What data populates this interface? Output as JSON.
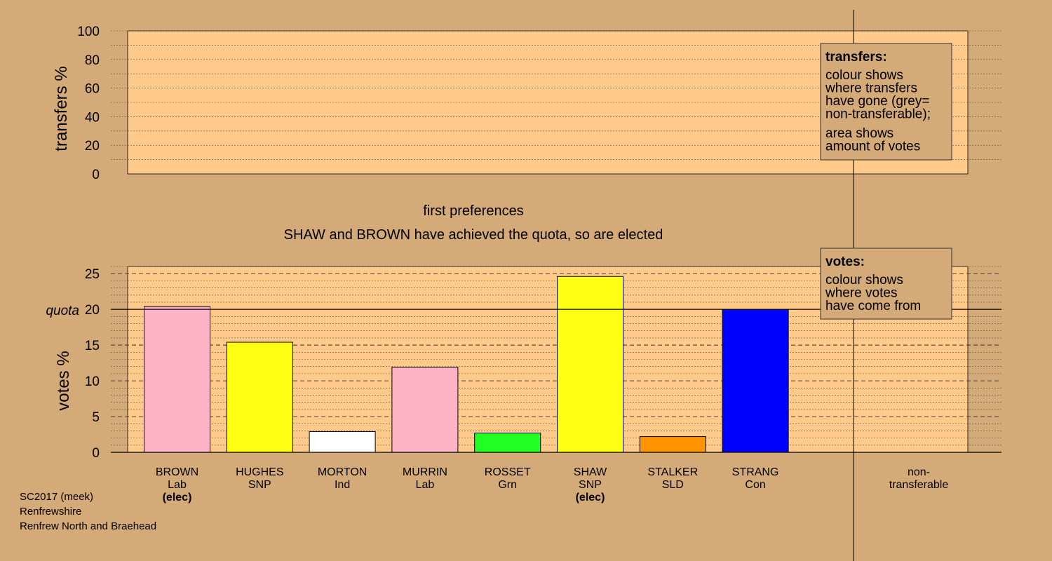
{
  "chart_data": [
    {
      "id": "transfers",
      "type": "bar",
      "ylabel": "transfers %",
      "ylim": [
        0,
        100
      ],
      "yticks": [
        0,
        20,
        40,
        60,
        80,
        100
      ],
      "series": [],
      "legend": {
        "title": "transfers:",
        "lines": [
          "colour shows",
          "where transfers",
          "have gone (grey=",
          "non-transferable);",
          "area shows",
          "amount of votes"
        ]
      }
    },
    {
      "id": "votes",
      "type": "bar",
      "ylabel": "votes %",
      "ylim": [
        0,
        26
      ],
      "yticks": [
        0,
        5,
        10,
        15,
        20,
        25
      ],
      "quota": 20,
      "quota_label": "quota",
      "categories": [
        {
          "name": "BROWN",
          "party": "Lab",
          "note": "(elec)",
          "value": 20.4,
          "color": "#ffb3c6"
        },
        {
          "name": "HUGHES",
          "party": "SNP",
          "note": "",
          "value": 15.4,
          "color": "#ffff14"
        },
        {
          "name": "MORTON",
          "party": "Ind",
          "note": "",
          "value": 2.9,
          "color": "#ffffff"
        },
        {
          "name": "MURRIN",
          "party": "Lab",
          "note": "",
          "value": 11.9,
          "color": "#ffb3c6"
        },
        {
          "name": "ROSSET",
          "party": "Grn",
          "note": "",
          "value": 2.7,
          "color": "#22ff22"
        },
        {
          "name": "SHAW",
          "party": "SNP",
          "note": "(elec)",
          "value": 24.6,
          "color": "#ffff14"
        },
        {
          "name": "STALKER",
          "party": "SLD",
          "note": "",
          "value": 2.2,
          "color": "#ff9400"
        },
        {
          "name": "STRANG",
          "party": "Con",
          "note": "",
          "value": 20.0,
          "color": "#0000ff"
        }
      ],
      "nontransferable_label": [
        "non-",
        "transferable"
      ],
      "legend": {
        "title": "votes:",
        "lines": [
          "colour shows",
          "where votes",
          "have come from"
        ]
      }
    }
  ],
  "headings": {
    "stage": "first preferences",
    "status": "SHAW and BROWN have achieved the quota, so are elected"
  },
  "footer": [
    "SC2017 (meek)",
    "Renfrewshire",
    "Renfrew North and Braehead"
  ],
  "colors": {
    "background": "#d4aa78",
    "plot_fill": "#ffca8a"
  }
}
